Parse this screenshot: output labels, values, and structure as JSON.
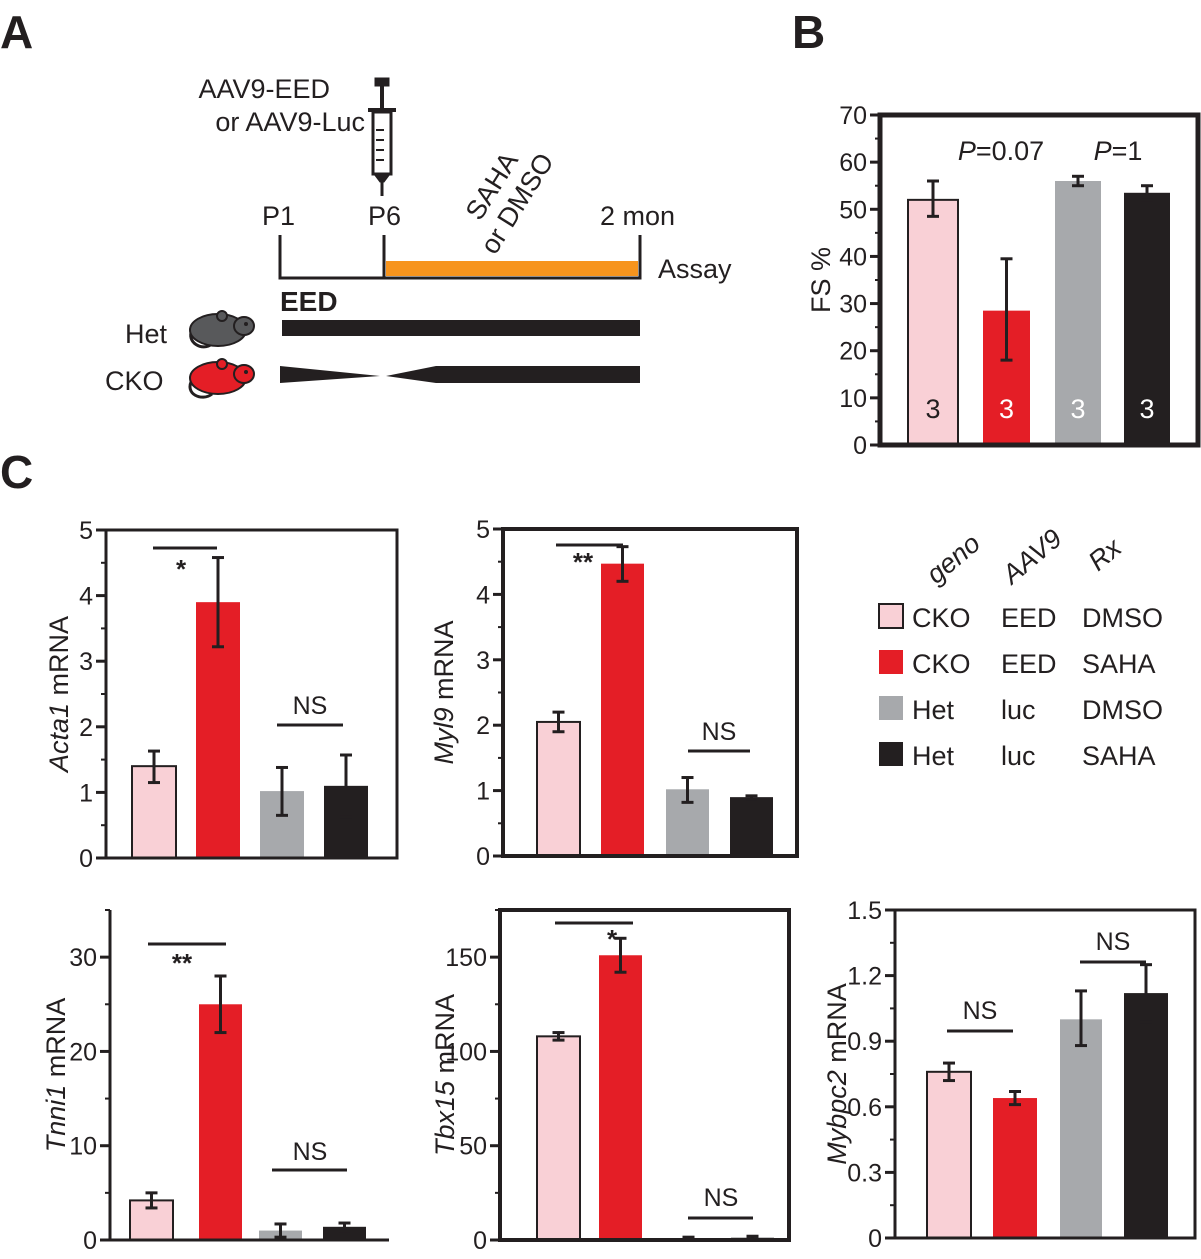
{
  "panels": {
    "a": "A",
    "b": "B",
    "c": "C"
  },
  "colors": {
    "cko_dmso": "#f9d0d6",
    "cko_saha": "#e41e26",
    "het_dmso": "#a7a9ac",
    "het_saha": "#231f20",
    "treatment_bar": "#f7941d",
    "treatment_text": "#f7941d"
  },
  "timeline": {
    "injection_line1": "AAV9-EED",
    "injection_line2": "or AAV9-Luc",
    "p1": "P1",
    "p6": "P6",
    "end": "2 mon",
    "treatment_line1": "SAHA",
    "treatment_line2": "or DMSO",
    "assay": "Assay",
    "eed_label": "EED",
    "het_label": "Het",
    "cko_label": "CKO"
  },
  "legend": {
    "headers": [
      "geno",
      "AAV9",
      "Rx"
    ],
    "rows": [
      {
        "geno": "CKO",
        "aav9": "EED",
        "rx": "DMSO",
        "color": "#f9d0d6"
      },
      {
        "geno": "CKO",
        "aav9": "EED",
        "rx": "SAHA",
        "color": "#e41e26"
      },
      {
        "geno": "Het",
        "aav9": "luc",
        "rx": "DMSO",
        "color": "#a7a9ac"
      },
      {
        "geno": "Het",
        "aav9": "luc",
        "rx": "SAHA",
        "color": "#231f20"
      }
    ]
  },
  "chart_data": [
    {
      "id": "fs",
      "type": "bar",
      "title": "",
      "ylabel": "FS %",
      "ylabel_italic": "",
      "ylim": [
        0,
        70
      ],
      "yticks": [
        "0",
        "10",
        "20",
        "30",
        "40",
        "50",
        "60",
        "70"
      ],
      "values": [
        52,
        28.5,
        56,
        53.5
      ],
      "errors": [
        [
          48.5,
          56
        ],
        [
          18,
          39.5
        ],
        [
          55,
          57
        ],
        [
          52,
          55
        ]
      ],
      "bar_labels": [
        "3",
        "3",
        "3",
        "3"
      ],
      "annotations": [
        {
          "italic": "P",
          "text": "=0.07"
        },
        {
          "italic": "P",
          "text": "=1"
        }
      ]
    },
    {
      "id": "acta1",
      "type": "bar",
      "ylabel": " mRNA",
      "ylabel_italic": "Acta1",
      "ylim": [
        0,
        5
      ],
      "yticks": [
        "0",
        "1",
        "2",
        "3",
        "4",
        "5"
      ],
      "values": [
        1.4,
        3.9,
        1.02,
        1.1
      ],
      "errors": [
        [
          1.15,
          1.63
        ],
        [
          3.22,
          4.58
        ],
        [
          0.65,
          1.38
        ],
        [
          0.62,
          1.57
        ]
      ],
      "annotations": [
        {
          "text": "*"
        },
        {
          "text": "NS"
        }
      ]
    },
    {
      "id": "myl9",
      "type": "bar",
      "ylabel": " mRNA",
      "ylabel_italic": "Myl9",
      "ylim": [
        0,
        5
      ],
      "yticks": [
        "0",
        "1",
        "2",
        "3",
        "4",
        "5"
      ],
      "values": [
        2.05,
        4.47,
        1.02,
        0.9
      ],
      "errors": [
        [
          1.9,
          2.2
        ],
        [
          4.2,
          4.73
        ],
        [
          0.82,
          1.2
        ],
        [
          0.87,
          0.92
        ]
      ],
      "annotations": [
        {
          "text": "**"
        },
        {
          "text": "NS"
        }
      ]
    },
    {
      "id": "tnni1",
      "type": "bar",
      "ylabel": " mRNA",
      "ylabel_italic": "Tnni1",
      "ylim": [
        0,
        35
      ],
      "yticks": [
        "0",
        "10",
        "20",
        "30"
      ],
      "values": [
        4.2,
        25,
        1.0,
        1.4
      ],
      "errors": [
        [
          3.4,
          5.0
        ],
        [
          22,
          28
        ],
        [
          0.3,
          1.7
        ],
        [
          1.0,
          1.8
        ]
      ],
      "annotations": [
        {
          "text": "**"
        },
        {
          "text": "NS"
        }
      ]
    },
    {
      "id": "tbx15",
      "type": "bar",
      "ylabel": " mRNA",
      "ylabel_italic": "Tbx15",
      "ylim": [
        0,
        175
      ],
      "yticks": [
        "0",
        "50",
        "100",
        "150"
      ],
      "values": [
        108,
        151,
        1.0,
        1.2
      ],
      "errors": [
        [
          106,
          110
        ],
        [
          142,
          160
        ],
        [
          0.5,
          1.5
        ],
        [
          0.5,
          2.0
        ]
      ],
      "annotations": [
        {
          "text": "*"
        },
        {
          "text": "NS"
        }
      ]
    },
    {
      "id": "mybpc2",
      "type": "bar",
      "ylabel": " mRNA",
      "ylabel_italic": "Mybpc2",
      "ylim": [
        0,
        1.5
      ],
      "yticks": [
        "0",
        "0.3",
        "0.6",
        "0.9",
        "1.2",
        "1.5"
      ],
      "values": [
        0.76,
        0.64,
        1.0,
        1.12
      ],
      "errors": [
        [
          0.72,
          0.8
        ],
        [
          0.61,
          0.67
        ],
        [
          0.88,
          1.13
        ],
        [
          0.99,
          1.25
        ]
      ],
      "annotations": [
        {
          "text": "NS"
        },
        {
          "text": "NS"
        }
      ]
    }
  ]
}
